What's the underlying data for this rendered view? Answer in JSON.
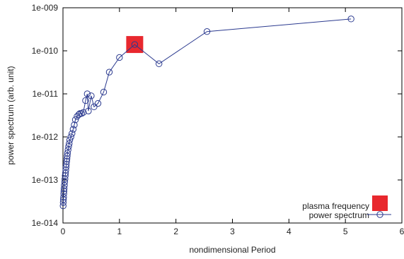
{
  "chart_data": {
    "type": "scatter",
    "xlabel": "nondimensional Period",
    "ylabel": "power spectrum (arb. unit)",
    "xlim": [
      0,
      6
    ],
    "ylim": [
      1e-14,
      1e-09
    ],
    "yscale": "log",
    "grid": false,
    "legend_position": "bottom-right",
    "x_ticks": [
      "0",
      "1",
      "2",
      "3",
      "4",
      "5",
      "6"
    ],
    "y_ticks": [
      "1e-014",
      "1e-013",
      "1e-012",
      "1e-011",
      "1e-010",
      "1e-009"
    ],
    "series": [
      {
        "name": "power spectrum",
        "color": "#2b3a8f",
        "marker": "open-circle",
        "line": true,
        "x": [
          0.003,
          0.005,
          0.008,
          0.011,
          0.014,
          0.017,
          0.02,
          0.025,
          0.03,
          0.035,
          0.04,
          0.045,
          0.05,
          0.055,
          0.06,
          0.065,
          0.07,
          0.075,
          0.08,
          0.09,
          0.1,
          0.11,
          0.12,
          0.14,
          0.16,
          0.18,
          0.2,
          0.22,
          0.25,
          0.28,
          0.3,
          0.33,
          0.36,
          0.4,
          0.43,
          0.45,
          0.5,
          0.55,
          0.62,
          0.72,
          0.82,
          1.0,
          1.27,
          1.7,
          2.55,
          5.1
        ],
        "values": [
          2.5e-14,
          3e-14,
          3.5e-14,
          4e-14,
          4.8e-14,
          5.5e-14,
          6.3e-14,
          7.5e-14,
          9e-14,
          1.05e-13,
          1.25e-13,
          1.45e-13,
          1.7e-13,
          2e-13,
          2.3e-13,
          2.7e-13,
          3.1e-13,
          3.6e-13,
          4.2e-13,
          5e-13,
          6e-13,
          7e-13,
          8.5e-13,
          1e-12,
          1.2e-12,
          1.5e-12,
          1.9e-12,
          2.5e-12,
          3e-12,
          3.3e-12,
          3.5e-12,
          3.5e-12,
          3.7e-12,
          7e-12,
          1e-11,
          4e-12,
          9e-12,
          5e-12,
          6e-12,
          1.1e-11,
          3.2e-11,
          7e-11,
          1.4e-10,
          5e-11,
          2.8e-10,
          5.5e-10
        ]
      },
      {
        "name": "plasma frequency",
        "color": "#e8282e",
        "marker": "filled-square",
        "line": false,
        "x": [
          1.27
        ],
        "values": [
          1.4e-10
        ]
      }
    ]
  }
}
